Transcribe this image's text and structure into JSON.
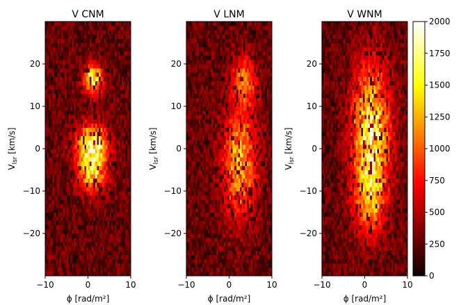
{
  "chart_data": [
    {
      "type": "heatmap",
      "title": "V CNM",
      "xlabel": "ϕ [rad/m²]",
      "ylabel": "V",
      "ylabel_sub": "lsr",
      "ylabel_unit": " [km/s]",
      "xlim": [
        -10,
        10
      ],
      "ylim": [
        -30,
        30
      ],
      "xticks": [
        -10,
        0,
        10
      ],
      "yticks": [
        -20,
        -10,
        0,
        10,
        20
      ],
      "colormap": "hot",
      "peaks": [
        {
          "phi": 1.2,
          "v": 16.5,
          "width_phi": 1.6,
          "width_v": 2.5,
          "amp": 1350
        },
        {
          "phi": 1.0,
          "v": 1.5,
          "width_phi": 2.6,
          "width_v": 3.0,
          "amp": 1400
        },
        {
          "phi": 1.0,
          "v": -5.0,
          "width_phi": 2.4,
          "width_v": 3.5,
          "amp": 1300
        }
      ]
    },
    {
      "type": "heatmap",
      "title": "V LNM",
      "xlabel": "ϕ [rad/m²]",
      "ylabel": "V",
      "ylabel_sub": "lsr",
      "ylabel_unit": " [km/s]",
      "xlim": [
        -10,
        10
      ],
      "ylim": [
        -30,
        30
      ],
      "xticks": [
        -10,
        0,
        10
      ],
      "yticks": [
        -20,
        -10,
        0,
        10,
        20
      ],
      "colormap": "hot",
      "peaks": [
        {
          "phi": 2.5,
          "v": -3.0,
          "width_phi": 2.8,
          "width_v": 9.0,
          "amp": 1050
        },
        {
          "phi": 3.5,
          "v": 16.0,
          "width_phi": 2.0,
          "width_v": 4.0,
          "amp": 800
        }
      ]
    },
    {
      "type": "heatmap",
      "title": "V WNM",
      "xlabel": "ϕ [rad/m²]",
      "ylabel": "V",
      "ylabel_sub": "lsr",
      "ylabel_unit": " [km/s]",
      "xlim": [
        -10,
        10
      ],
      "ylim": [
        -30,
        30
      ],
      "xticks": [
        -10,
        0,
        10
      ],
      "yticks": [
        -20,
        -10,
        0,
        10,
        20
      ],
      "colormap": "hot",
      "peaks": [
        {
          "phi": 1.5,
          "v": 4.0,
          "width_phi": 3.0,
          "width_v": 11.0,
          "amp": 1450
        },
        {
          "phi": 1.0,
          "v": -12.0,
          "width_phi": 2.5,
          "width_v": 6.0,
          "amp": 800
        }
      ]
    }
  ],
  "colorbar": {
    "min": 0,
    "max": 2000,
    "ticks": [
      0,
      250,
      500,
      750,
      1000,
      1250,
      1500,
      1750,
      2000
    ],
    "colormap": "hot"
  }
}
